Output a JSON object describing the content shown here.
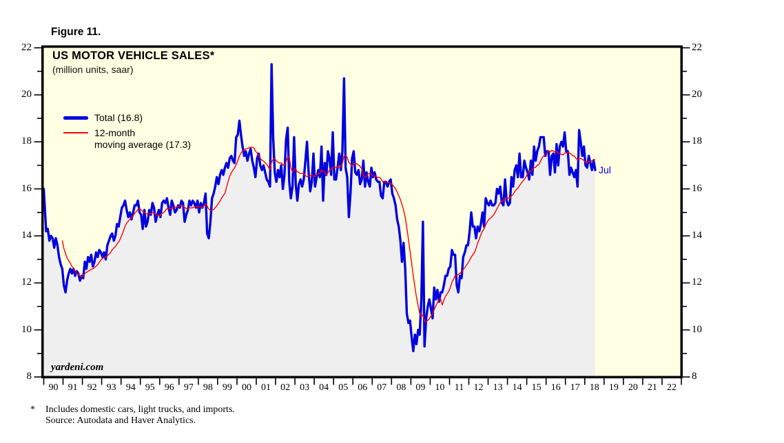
{
  "figure_label": "Figure 11.",
  "footnote": {
    "marker": "*",
    "line1": "Includes domestic cars, light trucks, and imports.",
    "line2": "Source: Autodata and Haver Analytics."
  },
  "chart_data": {
    "type": "line",
    "title": "US MOTOR VEHICLE SALES*",
    "subtitle": "(million units, saar)",
    "watermark": "yardeni.com",
    "annotation": {
      "text": "Jul",
      "attached_to": "last data point (2018-07)"
    },
    "plot_background": "#FFFFE3",
    "area_fill": {
      "under": "Total",
      "color": "#EFEFEF"
    },
    "grid": false,
    "legend_position": "upper-left-inside",
    "x_axis": {
      "start_year": 1990,
      "end_year_inclusive": 2022,
      "tick_labels": [
        "90",
        "91",
        "92",
        "93",
        "94",
        "95",
        "96",
        "97",
        "98",
        "99",
        "00",
        "01",
        "02",
        "03",
        "04",
        "05",
        "06",
        "07",
        "08",
        "09",
        "10",
        "11",
        "12",
        "13",
        "14",
        "15",
        "16",
        "17",
        "18",
        "19",
        "20",
        "21",
        "22"
      ]
    },
    "y_axis": {
      "min": 8,
      "max": 22,
      "major_ticks": [
        8,
        10,
        12,
        14,
        16,
        18,
        20,
        22
      ],
      "minor_tick_step": 1,
      "label_both_sides": true
    },
    "series": [
      {
        "name": "Total",
        "legend_label": "Total (16.8)",
        "color": "#0000E0",
        "width": "thick",
        "frequency": "monthly",
        "first_month": "1990-01",
        "last_month": "2018-07",
        "last_value": 16.8,
        "values_by_year": {
          "1990": [
            16.0,
            14.2,
            14.3,
            13.8,
            14.0,
            13.9,
            13.5,
            13.9,
            13.6,
            13.1,
            12.8,
            12.6
          ],
          "1991": [
            11.9,
            11.6,
            12.1,
            12.4,
            12.6,
            12.4,
            12.6,
            12.3,
            12.5,
            12.4,
            12.1,
            12.3
          ],
          "1992": [
            12.2,
            12.9,
            12.6,
            13.1,
            12.9,
            13.2,
            12.7,
            12.9,
            13.3,
            13.1,
            13.4,
            13.3
          ],
          "1993": [
            13.1,
            13.3,
            13.0,
            13.6,
            13.8,
            14.0,
            14.1,
            13.8,
            14.0,
            14.5,
            14.4,
            14.8
          ],
          "1994": [
            15.2,
            15.3,
            15.5,
            15.1,
            14.8,
            15.0,
            14.7,
            15.0,
            15.3,
            15.3,
            15.5,
            15.0
          ],
          "1995": [
            14.9,
            14.3,
            15.1,
            14.4,
            14.6,
            15.1,
            14.9,
            15.4,
            15.2,
            14.6,
            14.9,
            15.1
          ],
          "1996": [
            14.8,
            15.4,
            15.5,
            15.4,
            15.6,
            15.2,
            14.9,
            15.5,
            15.3,
            15.0,
            15.1,
            15.3
          ],
          "1997": [
            15.2,
            15.5,
            15.4,
            14.6,
            14.9,
            15.1,
            15.5,
            15.3,
            15.5,
            15.4,
            15.2,
            15.5
          ],
          "1998": [
            15.0,
            15.4,
            15.2,
            15.4,
            15.8,
            14.1,
            13.9,
            14.6,
            15.6,
            15.8,
            16.1,
            16.5
          ],
          "1999": [
            16.2,
            16.6,
            16.8,
            16.6,
            16.9,
            17.1,
            16.9,
            17.3,
            17.4,
            17.2,
            17.1,
            18.2
          ],
          "2000": [
            18.3,
            18.9,
            18.3,
            17.8,
            17.4,
            17.6,
            17.2,
            17.5,
            17.7,
            17.2,
            16.9,
            16.5
          ],
          "2001": [
            17.3,
            17.5,
            17.0,
            16.8,
            17.0,
            16.7,
            16.4,
            16.3,
            16.1,
            21.3,
            18.2,
            16.7
          ],
          "2002": [
            16.3,
            16.8,
            16.5,
            17.0,
            16.0,
            16.6,
            18.1,
            18.6,
            16.3,
            15.6,
            16.1,
            18.2
          ],
          "2003": [
            16.2,
            15.5,
            16.2,
            16.4,
            16.1,
            16.4,
            17.2,
            18.0,
            16.7,
            15.9,
            16.3,
            17.5
          ],
          "2004": [
            16.1,
            16.5,
            16.8,
            16.5,
            17.8,
            15.5,
            17.1,
            16.6,
            17.6,
            17.3,
            16.6,
            18.4
          ],
          "2005": [
            16.4,
            16.4,
            16.9,
            17.5,
            16.8,
            17.6,
            20.7,
            16.9,
            16.5,
            14.8,
            15.8,
            17.3
          ],
          "2006": [
            17.6,
            16.7,
            16.6,
            16.8,
            16.2,
            16.4,
            17.2,
            16.1,
            16.7,
            16.3,
            16.1,
            16.9
          ],
          "2007": [
            16.5,
            16.7,
            16.4,
            16.3,
            16.3,
            15.7,
            15.6,
            16.3,
            16.3,
            16.1,
            16.3,
            16.4
          ],
          "2008": [
            15.8,
            15.6,
            15.3,
            14.7,
            14.4,
            13.8,
            12.9,
            13.7,
            12.6,
            10.7,
            10.3,
            10.4
          ],
          "2009": [
            9.7,
            9.1,
            9.8,
            9.4,
            10.0,
            9.8,
            11.3,
            14.6,
            9.3,
            10.5,
            11.0,
            11.3
          ],
          "2010": [
            10.9,
            10.5,
            11.8,
            11.3,
            11.7,
            11.2,
            11.6,
            11.6,
            11.9,
            12.3,
            12.3,
            12.6
          ],
          "2011": [
            12.7,
            13.4,
            13.2,
            13.2,
            11.9,
            11.6,
            12.3,
            12.2,
            13.1,
            13.3,
            13.6,
            13.6
          ],
          "2012": [
            14.2,
            15.0,
            14.4,
            14.4,
            13.9,
            14.4,
            14.2,
            14.5,
            15.0,
            14.4,
            15.6,
            15.4
          ],
          "2013": [
            15.3,
            15.5,
            15.3,
            15.3,
            15.4,
            16.0,
            15.8,
            16.1,
            15.4,
            15.3,
            16.4,
            15.5
          ],
          "2014": [
            15.3,
            15.4,
            16.5,
            16.1,
            16.8,
            17.0,
            16.5,
            17.5,
            16.5,
            16.5,
            17.2,
            16.9
          ],
          "2015": [
            16.7,
            16.4,
            17.2,
            16.6,
            17.8,
            17.2,
            17.6,
            17.8,
            18.2,
            18.2,
            18.2,
            17.4
          ],
          "2016": [
            17.6,
            17.6,
            16.6,
            17.4,
            17.5,
            16.7,
            17.9,
            17.0,
            17.8,
            18.0,
            17.8,
            18.4
          ],
          "2017": [
            17.6,
            17.6,
            16.6,
            16.9,
            16.7,
            16.5,
            16.8,
            16.1,
            18.5,
            18.0,
            17.4,
            17.8
          ],
          "2018": [
            17.0,
            16.9,
            17.4,
            17.1,
            16.8,
            17.2,
            16.8
          ]
        }
      },
      {
        "name": "12-month moving average",
        "legend_label_lines": [
          "12-month",
          "moving average (17.3)"
        ],
        "color": "#FF0000",
        "width": "thin",
        "derived_from": "Total",
        "derivation": "trailing 12-month mean, first plotted 1990-12",
        "last_value": 17.3
      }
    ]
  }
}
